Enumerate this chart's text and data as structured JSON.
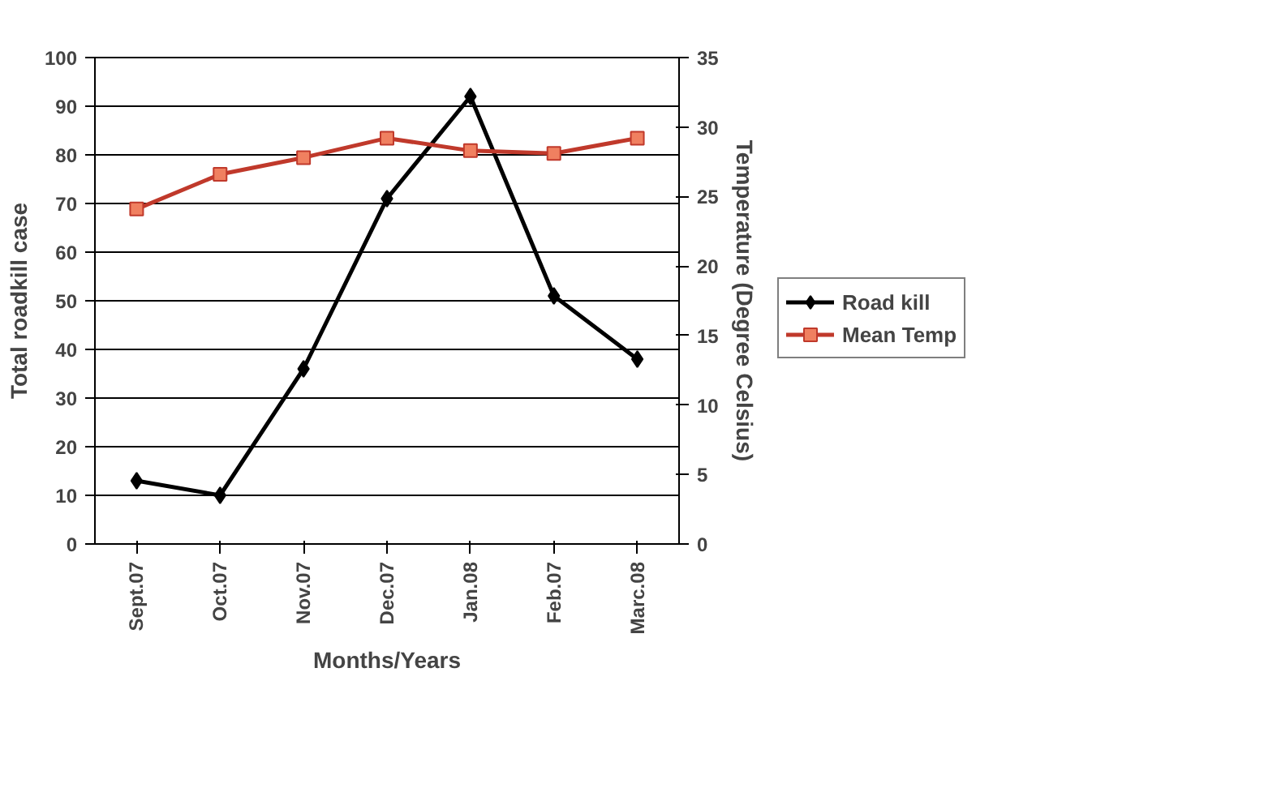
{
  "chart_data": {
    "type": "line",
    "xlabel": "Months/Years",
    "ylabel": "Total roadkill case",
    "y2label": "Temperature (Degree Celsius)",
    "categories": [
      "Sept.07",
      "Oct.07",
      "Nov.07",
      "Dec.07",
      "Jan.08",
      "Feb.07",
      "Marc.08"
    ],
    "series": [
      {
        "name": "Road kill",
        "color": "#000000",
        "marker": "diamond",
        "values": [
          13,
          10,
          36,
          71,
          92,
          51,
          38
        ]
      },
      {
        "name": "Mean Temp",
        "color": "#c0392b",
        "marker": "square",
        "axis": "y2",
        "values": [
          24.1,
          26.6,
          27.8,
          29.2,
          28.3,
          28.1,
          29.2
        ]
      }
    ],
    "ylim": [
      0,
      100
    ],
    "yticks": [
      0,
      10,
      20,
      30,
      40,
      50,
      60,
      70,
      80,
      90,
      100
    ],
    "y2lim": [
      0,
      35
    ],
    "y2ticks": [
      0,
      5,
      10,
      15,
      20,
      25,
      30,
      35
    ],
    "grid": "y",
    "legend": "right"
  }
}
